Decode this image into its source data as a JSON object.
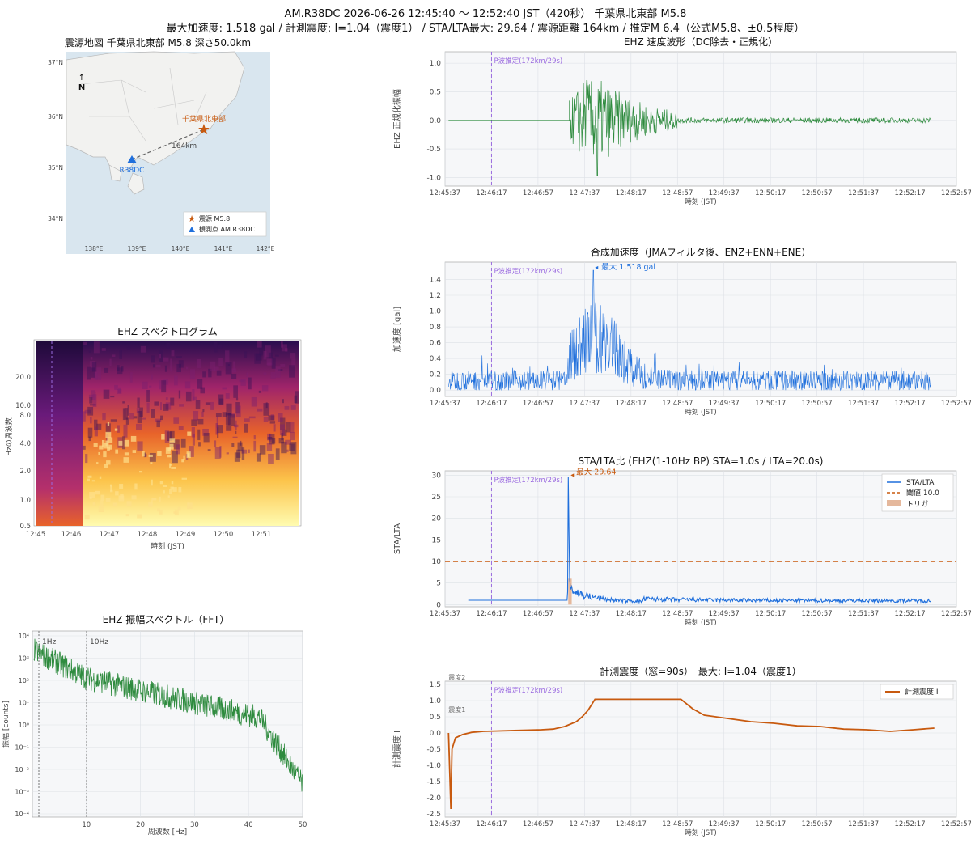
{
  "header": {
    "line1": "AM.R38DC  2026-06-26 12:45:40 〜 12:52:40 JST（420秒）  千葉県北東部 M5.8",
    "line2": "最大加速度: 1.518 gal  /  計測震度: I=1.04（震度1）  /  STA/LTA最大: 29.64  /  震源距離 164km  /  推定M 6.4（公式M5.8、±0.5程度）"
  },
  "colors": {
    "green": "#2e8b3e",
    "blue": "#1f6fdc",
    "orange": "#c85a0f",
    "purple": "#9b6be0",
    "panel_bg": "#f6f7f9",
    "grid": "#dde1e6",
    "trigger_fill": "#e5b89c"
  },
  "time_ticks": [
    "12:45:37",
    "12:46:17",
    "12:46:57",
    "12:47:37",
    "12:48:17",
    "12:48:57",
    "12:49:37",
    "12:50:17",
    "12:50:57",
    "12:51:37",
    "12:52:17",
    "12:52:57"
  ],
  "p_wave_label": "P波推定(172km/29s)",
  "xlabel_time": "時刻 (JST)",
  "map": {
    "title": "震源地図  千葉県北東部  M5.8  深さ50.0km",
    "north": "N",
    "epicenter_label": "千葉県北東部",
    "station_label": "R38DC",
    "distance_label": "164km",
    "lat_ticks": [
      "37°N",
      "36°N",
      "35°N",
      "34°N"
    ],
    "lon_ticks": [
      "138°E",
      "139°E",
      "140°E",
      "141°E",
      "142°E"
    ],
    "legend": [
      "震源 M5.8",
      "観測点 AM.R38DC"
    ]
  },
  "spectrogram": {
    "title": "EHZ スペクトログラム",
    "ylabel": "Hzの周波数",
    "xlabel": "時刻 (JST)",
    "y_ticks": [
      "20.0",
      "10.0",
      "8.0",
      "4.0",
      "2.0",
      "1.0",
      "0.5"
    ],
    "x_ticks": [
      "12:45",
      "12:46",
      "12:47",
      "12:48",
      "12:49",
      "12:50",
      "12:51"
    ]
  },
  "chart_data": [
    {
      "type": "line",
      "title": "EHZ 速度波形（DC除去・正規化）",
      "xlabel": "時刻 (JST)",
      "ylabel": "EHZ 正規化振幅",
      "ylim": [
        -1.15,
        1.2
      ],
      "y_ticks": [
        "1.0",
        "0.5",
        "0.0",
        "-0.5",
        "-1.0"
      ],
      "p_wave_time_s": 40,
      "peak_positive": 0.7,
      "peak_negative": -0.97,
      "series": [
        {
          "color": "#2e8b3e"
        }
      ]
    },
    {
      "type": "line",
      "title": "合成加速度（JMAフィルタ後、ENZ+ENN+ENE）",
      "xlabel": "時刻 (JST)",
      "ylabel": "加速度 [gal]",
      "ylim": [
        -0.08,
        1.62
      ],
      "y_ticks": [
        "1.4",
        "1.2",
        "1.0",
        "0.8",
        "0.6",
        "0.4",
        "0.2",
        "0.0"
      ],
      "annotation": "最大 1.518 gal",
      "max_value": 1.518,
      "series": [
        {
          "color": "#1f6fdc"
        }
      ]
    },
    {
      "type": "line",
      "title": "STA/LTA比  (EHZ(1-10Hz BP)  STA=1.0s / LTA=20.0s)",
      "xlabel": "時刻 (JST)",
      "ylabel": "STA/LTA",
      "ylim": [
        -0.5,
        31
      ],
      "y_ticks": [
        "30",
        "25",
        "20",
        "15",
        "10",
        "5",
        "0"
      ],
      "threshold": 10.0,
      "annotation": "最大 29.64",
      "max_value": 29.64,
      "legend": [
        "STA/LTA",
        "閾値 10.0",
        "トリガ"
      ]
    },
    {
      "type": "line",
      "title": "計測震度（窓=90s）　最大: I=1.04（震度1）",
      "xlabel": "時刻 (JST)",
      "ylabel": "計測震度 I",
      "ylim": [
        -2.6,
        1.6
      ],
      "y_ticks": [
        "1.5",
        "1.0",
        "0.5",
        "0.0",
        "-0.5",
        "-1.0",
        "-1.5",
        "-2.0",
        "-2.5"
      ],
      "shindo_lines": [
        {
          "label": "震度2",
          "value": 1.5
        },
        {
          "label": "震度1",
          "value": 0.5
        }
      ],
      "legend": [
        "計測震度 I"
      ],
      "x": [
        0,
        2,
        3,
        6,
        12,
        20,
        30,
        40,
        60,
        80,
        90,
        100,
        110,
        115,
        120,
        126,
        200,
        210,
        220,
        240,
        260,
        280,
        300,
        320,
        340,
        360,
        380,
        400,
        418
      ],
      "y": [
        0.0,
        -2.35,
        -0.5,
        -0.15,
        -0.05,
        0.02,
        0.05,
        0.06,
        0.08,
        0.1,
        0.12,
        0.2,
        0.35,
        0.5,
        0.7,
        1.04,
        1.04,
        0.75,
        0.55,
        0.45,
        0.35,
        0.3,
        0.22,
        0.2,
        0.12,
        0.1,
        0.05,
        0.1,
        0.15
      ]
    },
    {
      "type": "line",
      "title": "EHZ 振幅スペクトル（FFT）",
      "xlabel": "周波数 [Hz]",
      "ylabel": "振幅 [counts]",
      "x_ticks": [
        "10",
        "20",
        "30",
        "40",
        "50"
      ],
      "y_ticks": [
        "10⁴",
        "10³",
        "10²",
        "10¹",
        "10⁰",
        "10⁻¹",
        "10⁻²",
        "10⁻³",
        "10⁻⁴"
      ],
      "marker_lines": [
        {
          "label": "1Hz",
          "value": 1
        },
        {
          "label": "10Hz",
          "value": 10
        }
      ],
      "series": [
        {
          "color": "#2e8b3e"
        }
      ]
    }
  ]
}
